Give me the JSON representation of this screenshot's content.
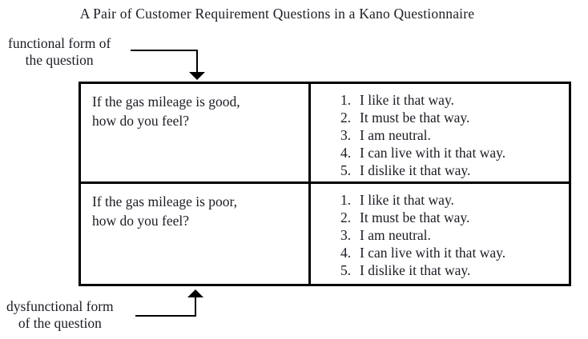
{
  "title": "A Pair of Customer Requirement Questions in a Kano Questionnaire",
  "labels": {
    "functional_line1": "functional form of",
    "functional_line2": "the question",
    "dysfunctional_line1": "dysfunctional form",
    "dysfunctional_line2": "of the question"
  },
  "table": {
    "rows": [
      {
        "question_line1": "If the gas mileage is good,",
        "question_line2": "how do you feel?",
        "options": [
          {
            "num": "1.",
            "text": "I like it that way."
          },
          {
            "num": "2.",
            "text": "It must be that way."
          },
          {
            "num": "3.",
            "text": "I am neutral."
          },
          {
            "num": "4.",
            "text": "I can live with it that way."
          },
          {
            "num": "5.",
            "text": "I dislike it that way."
          }
        ]
      },
      {
        "question_line1": "If the gas mileage is poor,",
        "question_line2": "how do you feel?",
        "options": [
          {
            "num": "1.",
            "text": "I like it that way."
          },
          {
            "num": "2.",
            "text": "It must be that way."
          },
          {
            "num": "3.",
            "text": "I am neutral."
          },
          {
            "num": "4.",
            "text": "I can live with it that way."
          },
          {
            "num": "5.",
            "text": "I dislike it that way."
          }
        ]
      }
    ]
  },
  "colors": {
    "text": "#1c1c24",
    "border": "#000000",
    "background": "#ffffff"
  }
}
